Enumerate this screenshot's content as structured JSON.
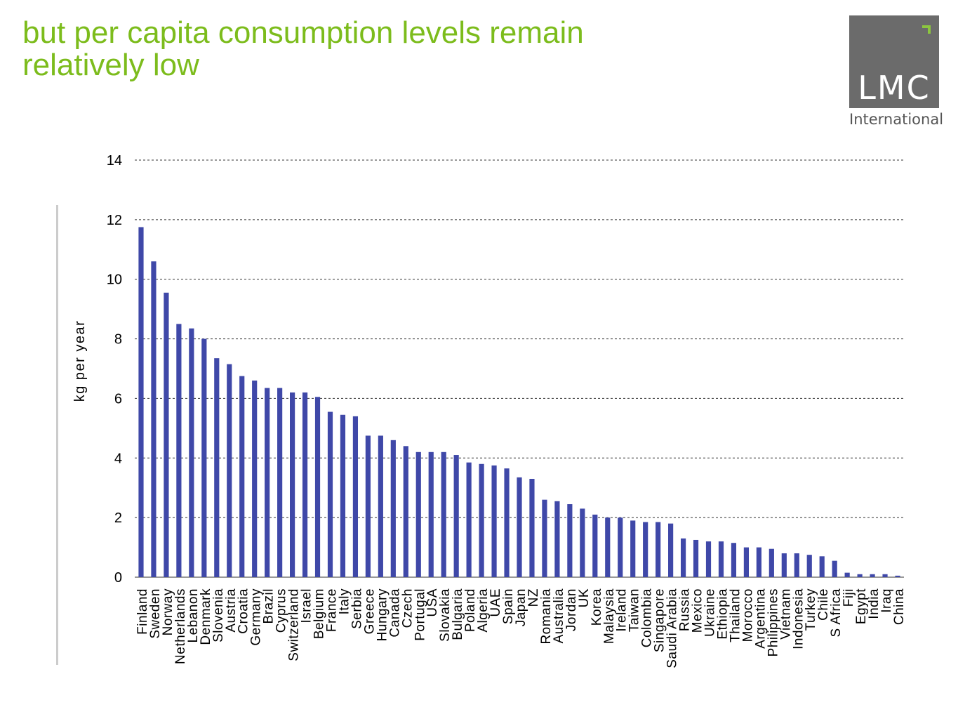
{
  "header": {
    "title_line1": "but per capita consumption levels remain",
    "title_line2": "relatively low"
  },
  "logo": {
    "mark": "LMC",
    "subtitle": "International",
    "box_color": "#6b6b6b",
    "accent_color": "#8cc63f"
  },
  "colors": {
    "title": "#7cbc1c",
    "bar": "#3f48a8"
  },
  "chart_data": {
    "type": "bar",
    "title": "",
    "xlabel": "",
    "ylabel": "kg per year",
    "ylim": [
      0,
      14
    ],
    "yticks": [
      0,
      2,
      4,
      6,
      8,
      10,
      12,
      14
    ],
    "grid": "horizontal dashed",
    "legend": "none",
    "categories": [
      "Finland",
      "Sweden",
      "Norway",
      "Netherlands",
      "Lebanon",
      "Denmark",
      "Slovenia",
      "Austria",
      "Croatia",
      "Germany",
      "Brazil",
      "Cyprus",
      "Switzerland",
      "Israel",
      "Belgium",
      "France",
      "Italy",
      "Serbia",
      "Greece",
      "Hungary",
      "Canada",
      "Czech",
      "Portugal",
      "USA",
      "Slovakia",
      "Bulgaria",
      "Poland",
      "Algeria",
      "UAE",
      "Spain",
      "Japan",
      "NZ",
      "Romania",
      "Australia",
      "Jordan",
      "UK",
      "Korea",
      "Malaysia",
      "Ireland",
      "Taiwan",
      "Colombia",
      "Singapore",
      "Saudi Arabia",
      "Russia",
      "Mexico",
      "Ukraine",
      "Ethiopia",
      "Thailand",
      "Morocco",
      "Argentina",
      "Philippines",
      "Vietnam",
      "Indonesia",
      "Turkey",
      "Chile",
      "S Africa",
      "Fiji",
      "Egypt",
      "India",
      "Iraq",
      "China"
    ],
    "values": [
      11.75,
      10.6,
      9.55,
      8.5,
      8.35,
      8.0,
      7.35,
      7.15,
      6.75,
      6.6,
      6.35,
      6.35,
      6.2,
      6.2,
      6.05,
      5.55,
      5.45,
      5.4,
      4.75,
      4.75,
      4.6,
      4.4,
      4.2,
      4.2,
      4.2,
      4.1,
      3.85,
      3.8,
      3.75,
      3.65,
      3.35,
      3.3,
      2.6,
      2.55,
      2.45,
      2.3,
      2.1,
      2.0,
      2.0,
      1.9,
      1.85,
      1.85,
      1.8,
      1.3,
      1.25,
      1.2,
      1.2,
      1.15,
      1.0,
      1.0,
      0.95,
      0.8,
      0.8,
      0.75,
      0.7,
      0.55,
      0.15,
      0.1,
      0.1,
      0.1,
      0.05
    ]
  }
}
